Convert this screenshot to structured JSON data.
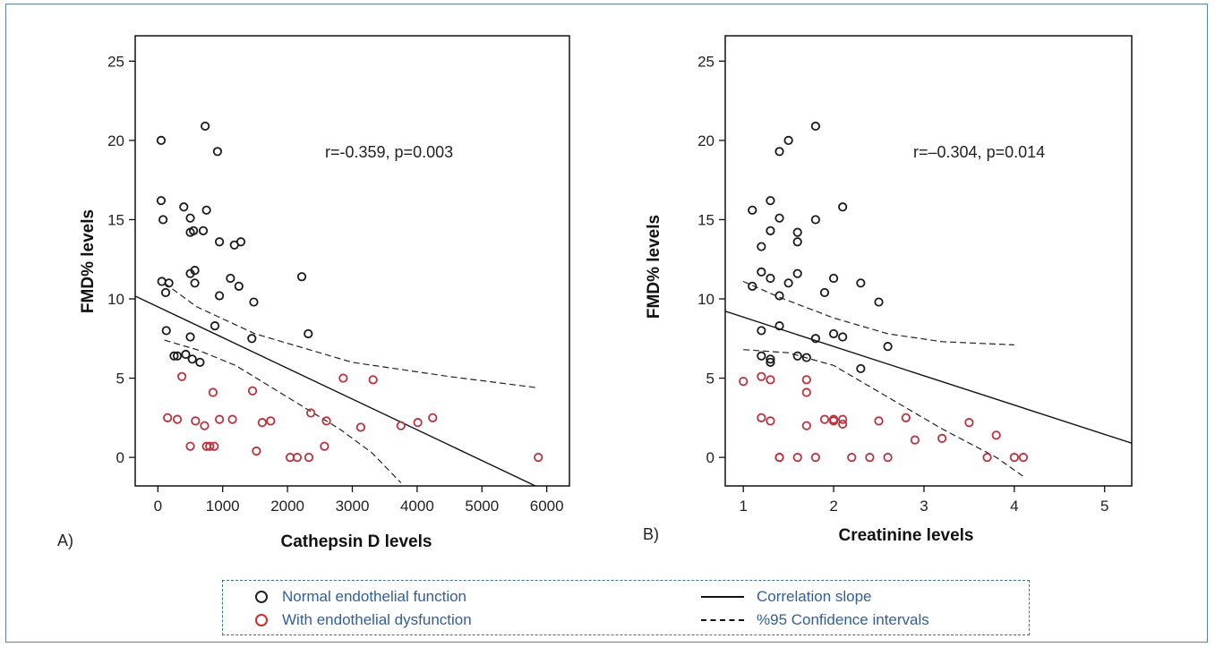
{
  "chart_data": [
    {
      "type": "scatter",
      "panel": "A)",
      "xlabel": "Cathepsin D levels",
      "ylabel": "FMD% levels",
      "xlim": [
        -350,
        6350
      ],
      "ylim": [
        -1.8,
        26.6
      ],
      "xticks": [
        0,
        1000,
        2000,
        3000,
        4000,
        5000,
        6000
      ],
      "yticks": [
        0,
        5,
        10,
        15,
        20,
        25
      ],
      "annotation": "r=-0.359, p=0.003",
      "series": [
        {
          "name": "Normal endothelial function",
          "color": "#1a1a1a",
          "points": [
            [
              50,
              20
            ],
            [
              50,
              16.2
            ],
            [
              80,
              15
            ],
            [
              60,
              11.1
            ],
            [
              120,
              10.4
            ],
            [
              170,
              11
            ],
            [
              130,
              8
            ],
            [
              250,
              6.4
            ],
            [
              300,
              6.4
            ],
            [
              400,
              15.8
            ],
            [
              500,
              15.1
            ],
            [
              500,
              14.2
            ],
            [
              550,
              14.3
            ],
            [
              700,
              14.3
            ],
            [
              750,
              15.6
            ],
            [
              730,
              20.9
            ],
            [
              920,
              19.3
            ],
            [
              500,
              11.6
            ],
            [
              570,
              11.8
            ],
            [
              570,
              11
            ],
            [
              950,
              13.6
            ],
            [
              1120,
              11.3
            ],
            [
              1180,
              13.4
            ],
            [
              1280,
              13.6
            ],
            [
              950,
              10.2
            ],
            [
              1250,
              10.8
            ],
            [
              880,
              8.3
            ],
            [
              500,
              7.6
            ],
            [
              430,
              6.5
            ],
            [
              530,
              6.2
            ],
            [
              650,
              6
            ],
            [
              1480,
              9.8
            ],
            [
              1450,
              7.5
            ],
            [
              2220,
              11.4
            ],
            [
              2320,
              7.8
            ]
          ]
        },
        {
          "name": "With endothelial dysfunction",
          "color": "#c0303a",
          "points": [
            [
              370,
              5.1
            ],
            [
              850,
              4.1
            ],
            [
              1460,
              4.2
            ],
            [
              2860,
              5
            ],
            [
              3320,
              4.9
            ],
            [
              150,
              2.5
            ],
            [
              300,
              2.4
            ],
            [
              580,
              2.3
            ],
            [
              720,
              2
            ],
            [
              950,
              2.4
            ],
            [
              1150,
              2.4
            ],
            [
              1610,
              2.2
            ],
            [
              1740,
              2.3
            ],
            [
              2360,
              2.8
            ],
            [
              2600,
              2.3
            ],
            [
              3130,
              1.9
            ],
            [
              3750,
              2
            ],
            [
              4010,
              2.2
            ],
            [
              4240,
              2.5
            ],
            [
              500,
              0.7
            ],
            [
              750,
              0.7
            ],
            [
              800,
              0.7
            ],
            [
              870,
              0.7
            ],
            [
              1520,
              0.4
            ],
            [
              2040,
              0
            ],
            [
              2150,
              0
            ],
            [
              2330,
              0
            ],
            [
              2570,
              0.7
            ],
            [
              5870,
              0
            ]
          ]
        }
      ],
      "fit": {
        "intercept": 9.5,
        "slope": -0.00194,
        "x_range": [
          -350,
          5850
        ]
      },
      "ci_upper": [
        [
          100,
          11
        ],
        [
          600,
          9.5
        ],
        [
          1500,
          7.8
        ],
        [
          3000,
          6
        ],
        [
          4500,
          5.1
        ],
        [
          5850,
          4.4
        ]
      ],
      "ci_lower": [
        [
          100,
          7.4
        ],
        [
          600,
          6.8
        ],
        [
          1200,
          5.8
        ],
        [
          2000,
          3.8
        ],
        [
          2800,
          1.8
        ],
        [
          3300,
          0.3
        ],
        [
          3750,
          -1.6
        ]
      ]
    },
    {
      "type": "scatter",
      "panel": "B)",
      "xlabel": "Creatinine levels",
      "ylabel": "FMD% levels",
      "xlim": [
        0.8,
        5.3
      ],
      "ylim": [
        -1.8,
        26.6
      ],
      "xticks": [
        1,
        2,
        3,
        4,
        5
      ],
      "yticks": [
        0,
        5,
        10,
        15,
        20,
        25
      ],
      "annotation": "r=–0.304, p=0.014",
      "series": [
        {
          "name": "Normal endothelial function",
          "color": "#1a1a1a",
          "points": [
            [
              1.1,
              15.6
            ],
            [
              1.3,
              16.2
            ],
            [
              1.4,
              15.1
            ],
            [
              1.5,
              20
            ],
            [
              1.4,
              19.3
            ],
            [
              1.8,
              20.9
            ],
            [
              1.8,
              15
            ],
            [
              2.1,
              15.8
            ],
            [
              1.3,
              14.3
            ],
            [
              1.2,
              13.3
            ],
            [
              1.6,
              14.2
            ],
            [
              1.6,
              13.6
            ],
            [
              1.1,
              10.8
            ],
            [
              1.2,
              11.7
            ],
            [
              1.3,
              11.3
            ],
            [
              1.4,
              10.2
            ],
            [
              1.5,
              11
            ],
            [
              1.6,
              11.6
            ],
            [
              1.9,
              10.4
            ],
            [
              2,
              11.3
            ],
            [
              2.3,
              11
            ],
            [
              2.5,
              9.8
            ],
            [
              1.2,
              8
            ],
            [
              1.4,
              8.3
            ],
            [
              1.8,
              7.5
            ],
            [
              2,
              7.8
            ],
            [
              2.1,
              7.6
            ],
            [
              2.6,
              7
            ],
            [
              1.2,
              6.4
            ],
            [
              1.3,
              6.2
            ],
            [
              1.3,
              6
            ],
            [
              1.6,
              6.4
            ],
            [
              1.7,
              6.3
            ],
            [
              2.3,
              5.6
            ]
          ]
        },
        {
          "name": "With endothelial dysfunction",
          "color": "#c0303a",
          "points": [
            [
              1,
              4.8
            ],
            [
              1.2,
              5.1
            ],
            [
              1.3,
              4.9
            ],
            [
              1.7,
              4.9
            ],
            [
              1.7,
              4.1
            ],
            [
              1.2,
              2.5
            ],
            [
              1.3,
              2.3
            ],
            [
              1.7,
              2
            ],
            [
              1.9,
              2.4
            ],
            [
              2,
              2.3
            ],
            [
              2,
              2.4
            ],
            [
              2.1,
              2.1
            ],
            [
              2.1,
              2.4
            ],
            [
              2.5,
              2.3
            ],
            [
              2.8,
              2.5
            ],
            [
              2.9,
              1.1
            ],
            [
              3.2,
              1.2
            ],
            [
              3.5,
              2.2
            ],
            [
              3.8,
              1.4
            ],
            [
              1.4,
              0
            ],
            [
              1.4,
              0
            ],
            [
              1.6,
              0
            ],
            [
              1.8,
              0
            ],
            [
              2.2,
              0
            ],
            [
              2.4,
              0
            ],
            [
              2.6,
              0
            ],
            [
              3.7,
              0
            ],
            [
              4,
              0
            ],
            [
              4.1,
              0
            ]
          ]
        }
      ],
      "fit": {
        "intercept": 10.7,
        "slope": -1.85,
        "x_range": [
          0.8,
          5.3
        ]
      },
      "ci_upper": [
        [
          1,
          11.1
        ],
        [
          1.4,
          10.1
        ],
        [
          2,
          8.8
        ],
        [
          2.6,
          7.8
        ],
        [
          3.2,
          7.3
        ],
        [
          4,
          7.1
        ]
      ],
      "ci_lower": [
        [
          1,
          6.8
        ],
        [
          1.5,
          6.6
        ],
        [
          2,
          5.8
        ],
        [
          2.6,
          3.8
        ],
        [
          3.2,
          1.8
        ],
        [
          3.8,
          0
        ],
        [
          4.1,
          -1.2
        ]
      ]
    }
  ],
  "legend": {
    "normal_label": "Normal endothelial function",
    "dysfunction_label": "With endothelial dysfunction",
    "slope_label": "Correlation slope",
    "ci_label": "%95 Confidence intervals",
    "normal_color": "#1a1a1a",
    "dysfunction_color": "#d42a2a"
  }
}
